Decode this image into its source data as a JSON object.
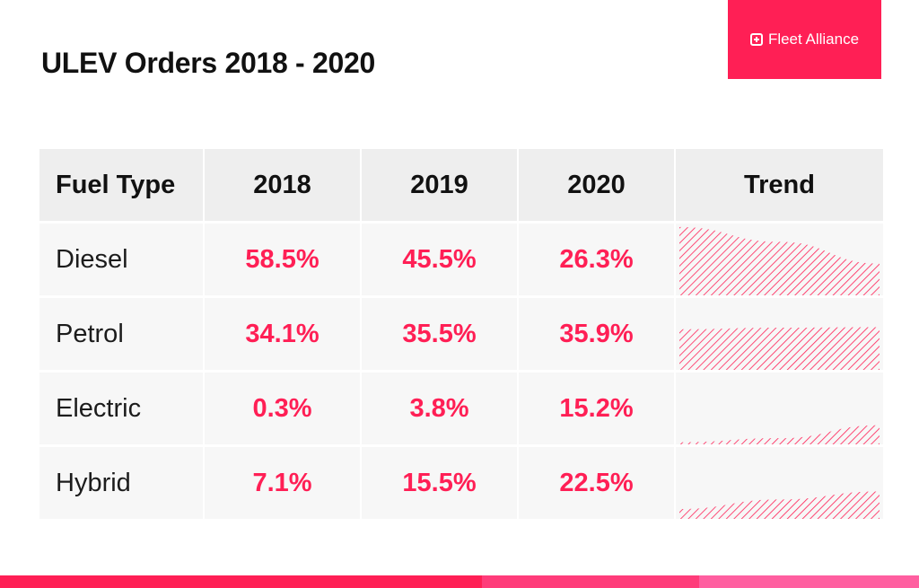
{
  "title": "ULEV Orders 2018 - 2020",
  "brand": {
    "name": "Fleet Alliance",
    "icon": "plus-square-icon"
  },
  "colors": {
    "accent": "#ff1f55",
    "bar1": "#ff1f55",
    "bar2": "#ff3c7a",
    "bar3": "#ff5fa0",
    "brand_bg": "#ff1f55"
  },
  "table": {
    "headers": [
      "Fuel Type",
      "2018",
      "2019",
      "2020",
      "Trend"
    ],
    "rows": [
      {
        "fuel": "Diesel",
        "values": [
          "58.5%",
          "45.5%",
          "26.3%"
        ]
      },
      {
        "fuel": "Petrol",
        "values": [
          "34.1%",
          "35.5%",
          "35.9%"
        ]
      },
      {
        "fuel": "Electric",
        "values": [
          "0.3%",
          "3.8%",
          "15.2%"
        ]
      },
      {
        "fuel": "Hybrid",
        "values": [
          "7.1%",
          "15.5%",
          "22.5%"
        ]
      }
    ]
  },
  "chart_data": {
    "type": "table",
    "title": "ULEV Orders 2018 - 2020",
    "categories": [
      "2018",
      "2019",
      "2020"
    ],
    "series": [
      {
        "name": "Diesel",
        "values": [
          58.5,
          45.5,
          26.3
        ]
      },
      {
        "name": "Petrol",
        "values": [
          34.1,
          35.5,
          35.9
        ]
      },
      {
        "name": "Electric",
        "values": [
          0.3,
          3.8,
          15.2
        ]
      },
      {
        "name": "Hybrid",
        "values": [
          7.1,
          15.5,
          22.5
        ]
      }
    ],
    "trend_ylim": [
      0,
      60
    ]
  }
}
